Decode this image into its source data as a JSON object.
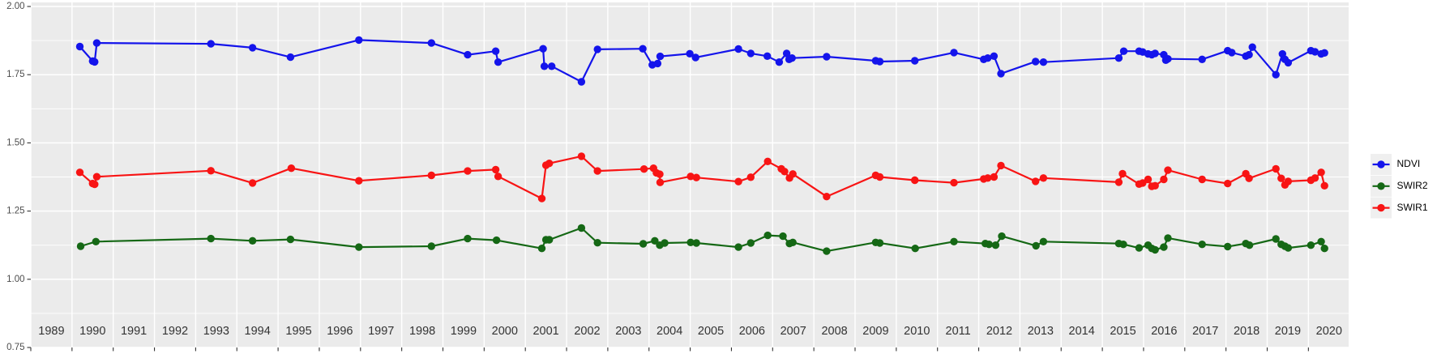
{
  "chart_data": {
    "type": "line",
    "x_tick_labels": [
      "1989",
      "1990",
      "1991",
      "1992",
      "1993",
      "1994",
      "1995",
      "1996",
      "1997",
      "1998",
      "1999",
      "2000",
      "2001",
      "2002",
      "2003",
      "2004",
      "2005",
      "2006",
      "2007",
      "2008",
      "2009",
      "2010",
      "2011",
      "2012",
      "2013",
      "2014",
      "2015",
      "2016",
      "2017",
      "2018",
      "2019",
      "2020"
    ],
    "x_tick_years": [
      1989,
      1990,
      1991,
      1992,
      1993,
      1994,
      1995,
      1996,
      1997,
      1998,
      1999,
      2000,
      2001,
      2002,
      2003,
      2004,
      2005,
      2006,
      2007,
      2008,
      2009,
      2010,
      2011,
      2012,
      2013,
      2014,
      2015,
      2016,
      2017,
      2018,
      2019,
      2020
    ],
    "y_tick_labels": [
      "0.75",
      "1.00",
      "1.25",
      "1.50",
      "1.75",
      "2.00"
    ],
    "y_ticks": [
      0.75,
      1.0,
      1.25,
      1.5,
      1.75,
      2.0
    ],
    "y_minor_ticks": [
      0.875,
      1.125,
      1.375,
      1.625,
      1.875
    ],
    "xlim": [
      1989.0,
      2020.95
    ],
    "ylim": [
      0.75,
      2.015
    ],
    "grid": "on",
    "legend_position": "right",
    "series": [
      {
        "name": "NDVI",
        "color": "#1414EB",
        "points": [
          [
            1990.19,
            1.853
          ],
          [
            1990.5,
            1.8
          ],
          [
            1990.55,
            1.797
          ],
          [
            1990.6,
            1.866
          ],
          [
            1993.37,
            1.863
          ],
          [
            1994.38,
            1.849
          ],
          [
            1995.3,
            1.814
          ],
          [
            1996.96,
            1.877
          ],
          [
            1998.72,
            1.866
          ],
          [
            1999.6,
            1.823
          ],
          [
            2000.28,
            1.836
          ],
          [
            2000.34,
            1.796
          ],
          [
            2001.43,
            1.845
          ],
          [
            2001.46,
            1.781
          ],
          [
            2001.64,
            1.781
          ],
          [
            2002.36,
            1.724
          ],
          [
            2002.75,
            1.843
          ],
          [
            2003.85,
            1.845
          ],
          [
            2004.08,
            1.786
          ],
          [
            2004.21,
            1.791
          ],
          [
            2004.27,
            1.817
          ],
          [
            2004.99,
            1.827
          ],
          [
            2005.13,
            1.813
          ],
          [
            2006.17,
            1.844
          ],
          [
            2006.47,
            1.828
          ],
          [
            2006.87,
            1.818
          ],
          [
            2007.16,
            1.796
          ],
          [
            2007.34,
            1.828
          ],
          [
            2007.4,
            1.806
          ],
          [
            2007.47,
            1.811
          ],
          [
            2008.31,
            1.816
          ],
          [
            2009.5,
            1.801
          ],
          [
            2009.6,
            1.798
          ],
          [
            2010.45,
            1.801
          ],
          [
            2011.4,
            1.831
          ],
          [
            2012.12,
            1.806
          ],
          [
            2012.22,
            1.811
          ],
          [
            2012.37,
            1.818
          ],
          [
            2012.54,
            1.754
          ],
          [
            2013.38,
            1.798
          ],
          [
            2013.57,
            1.796
          ],
          [
            2015.4,
            1.811
          ],
          [
            2015.52,
            1.836
          ],
          [
            2015.89,
            1.836
          ],
          [
            2015.98,
            1.833
          ],
          [
            2016.11,
            1.826
          ],
          [
            2016.2,
            1.823
          ],
          [
            2016.28,
            1.828
          ],
          [
            2016.49,
            1.823
          ],
          [
            2016.54,
            1.803
          ],
          [
            2016.59,
            1.808
          ],
          [
            2017.42,
            1.806
          ],
          [
            2018.04,
            1.838
          ],
          [
            2018.14,
            1.831
          ],
          [
            2018.48,
            1.818
          ],
          [
            2018.56,
            1.823
          ],
          [
            2018.64,
            1.851
          ],
          [
            2019.21,
            1.75
          ],
          [
            2019.37,
            1.826
          ],
          [
            2019.43,
            1.806
          ],
          [
            2019.51,
            1.794
          ],
          [
            2020.06,
            1.838
          ],
          [
            2020.16,
            1.834
          ],
          [
            2020.31,
            1.826
          ],
          [
            2020.39,
            1.83
          ]
        ]
      },
      {
        "name": "SWIR2",
        "color": "#156815",
        "points": [
          [
            1990.21,
            1.121
          ],
          [
            1990.58,
            1.138
          ],
          [
            1993.37,
            1.149
          ],
          [
            1994.38,
            1.141
          ],
          [
            1995.3,
            1.146
          ],
          [
            1996.96,
            1.118
          ],
          [
            1998.72,
            1.121
          ],
          [
            1999.6,
            1.149
          ],
          [
            2000.3,
            1.143
          ],
          [
            2001.4,
            1.113
          ],
          [
            2001.5,
            1.145
          ],
          [
            2001.58,
            1.145
          ],
          [
            2002.36,
            1.188
          ],
          [
            2002.75,
            1.134
          ],
          [
            2003.86,
            1.13
          ],
          [
            2004.14,
            1.141
          ],
          [
            2004.26,
            1.125
          ],
          [
            2004.38,
            1.133
          ],
          [
            2005.01,
            1.135
          ],
          [
            2005.15,
            1.133
          ],
          [
            2006.17,
            1.118
          ],
          [
            2006.47,
            1.133
          ],
          [
            2006.88,
            1.161
          ],
          [
            2007.25,
            1.158
          ],
          [
            2007.41,
            1.131
          ],
          [
            2007.49,
            1.135
          ],
          [
            2008.31,
            1.103
          ],
          [
            2009.5,
            1.135
          ],
          [
            2009.6,
            1.133
          ],
          [
            2010.46,
            1.113
          ],
          [
            2011.4,
            1.138
          ],
          [
            2012.16,
            1.131
          ],
          [
            2012.25,
            1.128
          ],
          [
            2012.41,
            1.125
          ],
          [
            2012.56,
            1.158
          ],
          [
            2013.39,
            1.123
          ],
          [
            2013.57,
            1.138
          ],
          [
            2015.4,
            1.131
          ],
          [
            2015.51,
            1.128
          ],
          [
            2015.89,
            1.115
          ],
          [
            2016.11,
            1.125
          ],
          [
            2016.2,
            1.113
          ],
          [
            2016.28,
            1.108
          ],
          [
            2016.49,
            1.118
          ],
          [
            2016.59,
            1.151
          ],
          [
            2017.42,
            1.128
          ],
          [
            2018.04,
            1.12
          ],
          [
            2018.48,
            1.131
          ],
          [
            2018.57,
            1.125
          ],
          [
            2019.21,
            1.148
          ],
          [
            2019.34,
            1.128
          ],
          [
            2019.43,
            1.121
          ],
          [
            2019.51,
            1.115
          ],
          [
            2020.06,
            1.125
          ],
          [
            2020.31,
            1.138
          ],
          [
            2020.39,
            1.113
          ]
        ]
      },
      {
        "name": "SWIR1",
        "color": "#F81414",
        "points": [
          [
            1990.19,
            1.392
          ],
          [
            1990.5,
            1.351
          ],
          [
            1990.55,
            1.348
          ],
          [
            1990.6,
            1.376
          ],
          [
            1993.37,
            1.398
          ],
          [
            1994.38,
            1.353
          ],
          [
            1995.32,
            1.407
          ],
          [
            1996.96,
            1.361
          ],
          [
            1998.72,
            1.381
          ],
          [
            1999.6,
            1.397
          ],
          [
            2000.28,
            1.402
          ],
          [
            2000.34,
            1.377
          ],
          [
            2001.4,
            1.296
          ],
          [
            2001.5,
            1.418
          ],
          [
            2001.58,
            1.425
          ],
          [
            2002.36,
            1.451
          ],
          [
            2002.75,
            1.397
          ],
          [
            2003.88,
            1.404
          ],
          [
            2004.11,
            1.407
          ],
          [
            2004.18,
            1.39
          ],
          [
            2004.26,
            1.385
          ],
          [
            2004.27,
            1.355
          ],
          [
            2005.01,
            1.377
          ],
          [
            2005.15,
            1.373
          ],
          [
            2006.17,
            1.358
          ],
          [
            2006.47,
            1.374
          ],
          [
            2006.88,
            1.432
          ],
          [
            2007.21,
            1.405
          ],
          [
            2007.29,
            1.395
          ],
          [
            2007.41,
            1.371
          ],
          [
            2007.49,
            1.386
          ],
          [
            2008.31,
            1.303
          ],
          [
            2009.5,
            1.381
          ],
          [
            2009.6,
            1.375
          ],
          [
            2010.45,
            1.363
          ],
          [
            2011.4,
            1.354
          ],
          [
            2012.12,
            1.368
          ],
          [
            2012.22,
            1.371
          ],
          [
            2012.37,
            1.375
          ],
          [
            2012.54,
            1.417
          ],
          [
            2013.38,
            1.359
          ],
          [
            2013.57,
            1.371
          ],
          [
            2015.4,
            1.356
          ],
          [
            2015.49,
            1.387
          ],
          [
            2015.89,
            1.349
          ],
          [
            2015.98,
            1.353
          ],
          [
            2016.11,
            1.366
          ],
          [
            2016.2,
            1.341
          ],
          [
            2016.28,
            1.343
          ],
          [
            2016.49,
            1.366
          ],
          [
            2016.59,
            1.4
          ],
          [
            2017.42,
            1.366
          ],
          [
            2018.04,
            1.351
          ],
          [
            2018.48,
            1.387
          ],
          [
            2018.56,
            1.37
          ],
          [
            2019.21,
            1.405
          ],
          [
            2019.34,
            1.37
          ],
          [
            2019.43,
            1.346
          ],
          [
            2019.51,
            1.359
          ],
          [
            2020.06,
            1.363
          ],
          [
            2020.16,
            1.371
          ],
          [
            2020.31,
            1.392
          ],
          [
            2020.39,
            1.343
          ]
        ]
      }
    ],
    "legend_entries": [
      "NDVI",
      "SWIR2",
      "SWIR1"
    ],
    "styles": {
      "panel_bg": "#EBEBEB",
      "grid_color": "#FFFFFF",
      "axis_text_color": "#4D4D4D",
      "x_label_color": "#333333",
      "tick_mark_color": "#333333",
      "legend_key_bg": "#EFEFEF",
      "legend_text_color": "#000000"
    }
  }
}
